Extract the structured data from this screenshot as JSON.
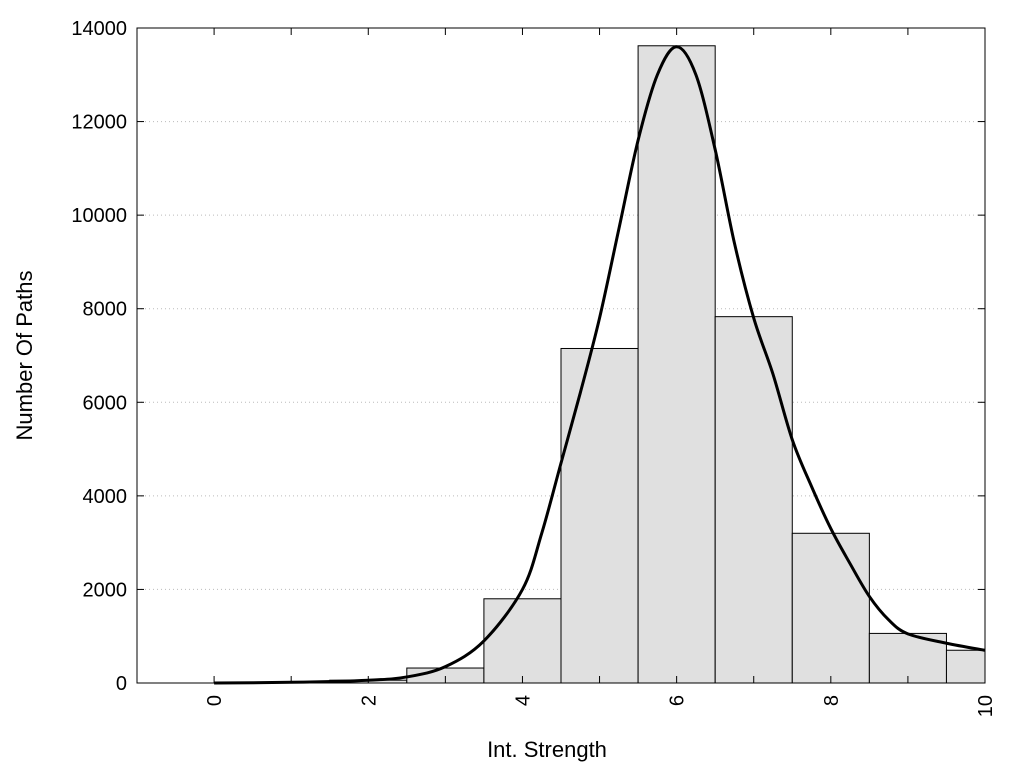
{
  "chart_data": {
    "type": "bar",
    "title": "",
    "xlabel": "Int. Strength",
    "ylabel": "Number Of Paths",
    "xlim": [
      -1,
      10
    ],
    "ylim": [
      0,
      14000
    ],
    "x_ticks": [
      0,
      2,
      4,
      6,
      8,
      10
    ],
    "y_ticks": [
      0,
      2000,
      4000,
      6000,
      8000,
      10000,
      12000,
      14000
    ],
    "grid": "horizontal-dotted",
    "bar_color": "#e0e0e0",
    "bar_edge_color": "#000000",
    "bars": [
      {
        "x": 0,
        "value": 0
      },
      {
        "x": 1,
        "value": 10
      },
      {
        "x": 2,
        "value": 60
      },
      {
        "x": 3,
        "value": 320
      },
      {
        "x": 4,
        "value": 1800
      },
      {
        "x": 5,
        "value": 7150
      },
      {
        "x": 6,
        "value": 13620
      },
      {
        "x": 7,
        "value": 7830
      },
      {
        "x": 8,
        "value": 3200
      },
      {
        "x": 9,
        "value": 1060
      },
      {
        "x": 10,
        "value": 700
      }
    ],
    "curve": {
      "type": "line",
      "color": "#000000",
      "points": [
        [
          0,
          0
        ],
        [
          1,
          15
        ],
        [
          2,
          60
        ],
        [
          2.5,
          130
        ],
        [
          3,
          350
        ],
        [
          3.5,
          900
        ],
        [
          4,
          2000
        ],
        [
          4.25,
          3200
        ],
        [
          4.5,
          4700
        ],
        [
          4.75,
          6200
        ],
        [
          5,
          7800
        ],
        [
          5.25,
          9700
        ],
        [
          5.5,
          11600
        ],
        [
          5.75,
          13000
        ],
        [
          6,
          13600
        ],
        [
          6.25,
          13000
        ],
        [
          6.5,
          11400
        ],
        [
          6.75,
          9400
        ],
        [
          7,
          7800
        ],
        [
          7.25,
          6600
        ],
        [
          7.5,
          5200
        ],
        [
          7.75,
          4200
        ],
        [
          8,
          3300
        ],
        [
          8.25,
          2550
        ],
        [
          8.5,
          1850
        ],
        [
          8.75,
          1350
        ],
        [
          9,
          1050
        ],
        [
          9.5,
          850
        ],
        [
          10,
          700
        ]
      ]
    }
  }
}
